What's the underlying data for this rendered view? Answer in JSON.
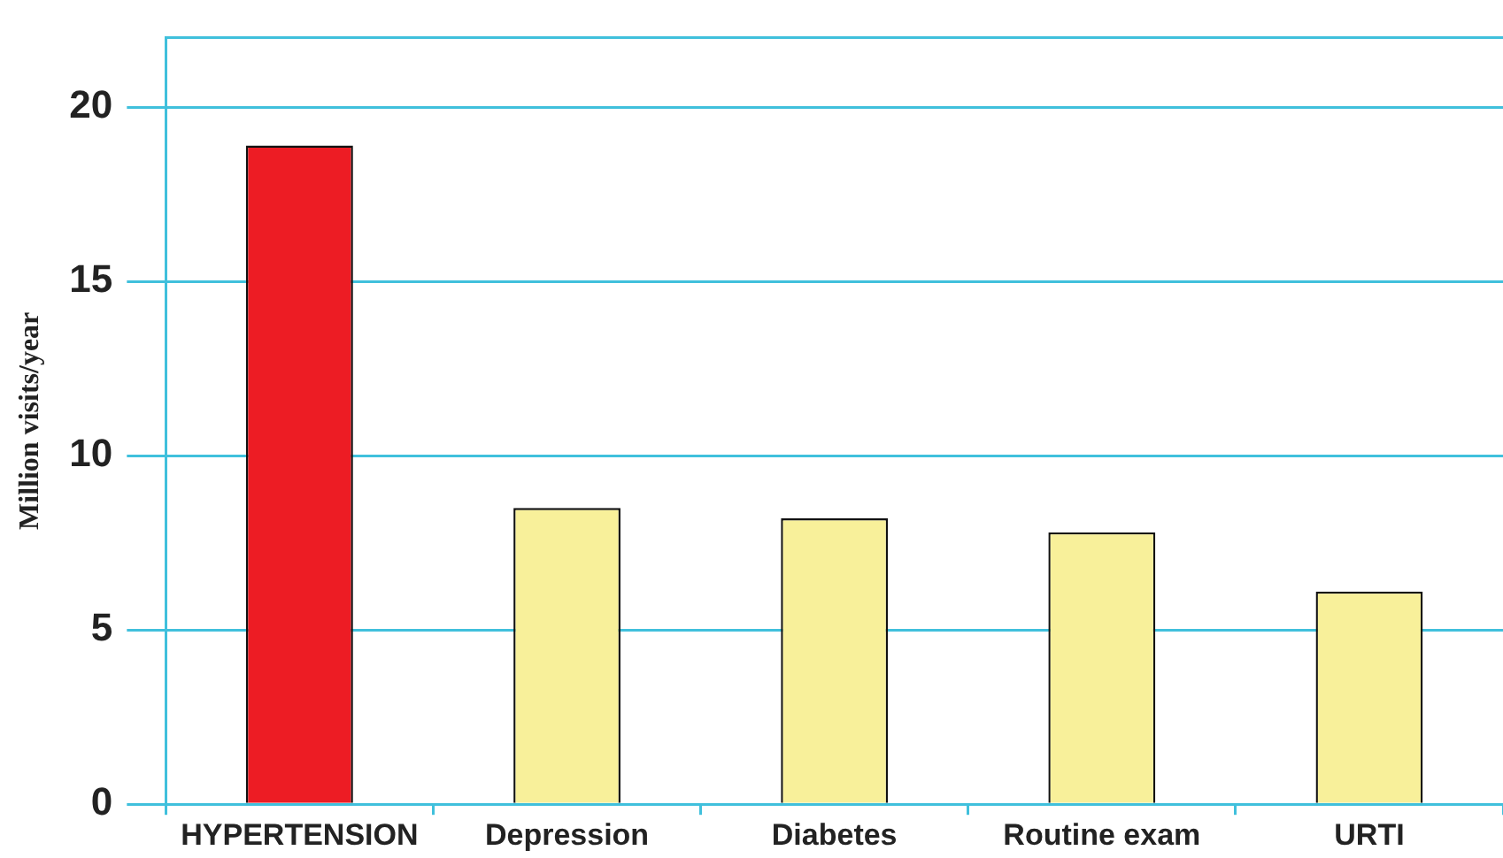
{
  "chart_data": {
    "type": "bar",
    "ylabel": "Million visits/year",
    "categories": [
      "HYPERTENSION",
      "Depression",
      "Diabetes",
      "Routine exam",
      "URTI"
    ],
    "values": [
      18.9,
      8.5,
      8.2,
      7.8,
      6.1
    ],
    "colors": [
      "#ed1c24",
      "#f8f09a",
      "#f8f09a",
      "#f8f09a",
      "#f8f09a"
    ],
    "ylim": [
      0,
      22
    ],
    "yticks": [
      0,
      5,
      10,
      15,
      20
    ],
    "grid": "y",
    "legend": false
  }
}
